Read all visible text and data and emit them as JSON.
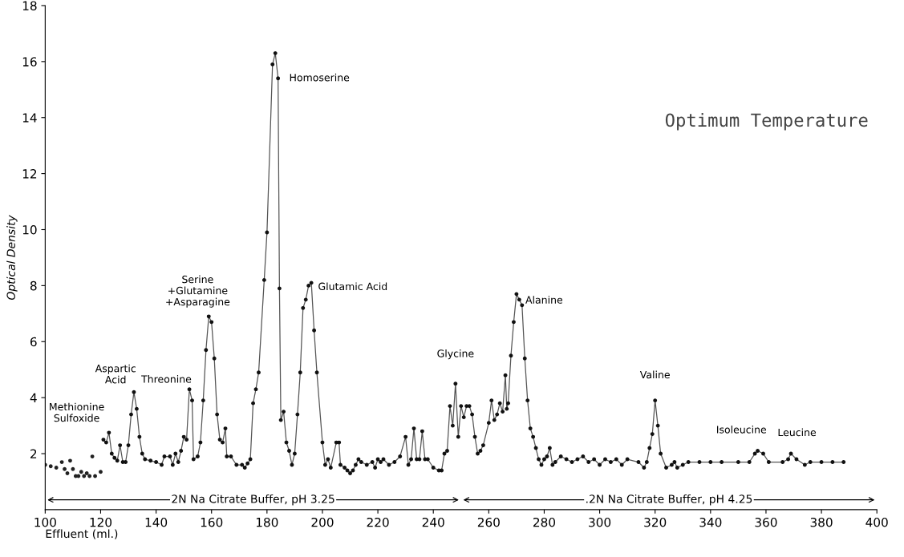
{
  "chart_data": {
    "type": "line",
    "title": "Optimum Temperature",
    "xlabel": "Effluent (ml.)",
    "ylabel": "Optical Density",
    "xlim": [
      100,
      400
    ],
    "xticks": [
      100,
      120,
      140,
      160,
      180,
      200,
      220,
      240,
      260,
      280,
      300,
      320,
      340,
      360,
      380,
      400
    ],
    "ylim": [
      0,
      18
    ],
    "yticks": [
      2,
      4,
      6,
      8,
      10,
      12,
      14,
      16,
      18
    ],
    "grid": false,
    "marker": "circle",
    "line_style": "solid",
    "series": [
      {
        "type": "scatter",
        "color": "#222222",
        "x": [
          100,
          102,
          104,
          106,
          107,
          108,
          109,
          110,
          111,
          112,
          113,
          114,
          115,
          116,
          117,
          118,
          120
        ],
        "values": [
          1.6,
          1.55,
          1.5,
          1.7,
          1.45,
          1.3,
          1.75,
          1.45,
          1.2,
          1.2,
          1.35,
          1.2,
          1.3,
          1.2,
          1.9,
          1.2,
          1.35
        ]
      },
      {
        "color": "#555555",
        "x": [
          121,
          122,
          123,
          124,
          125,
          126,
          127,
          128,
          129,
          130,
          131,
          132,
          133,
          134,
          135,
          136,
          138,
          140,
          142,
          143,
          145,
          146,
          147,
          148,
          149,
          150,
          151,
          152,
          153,
          153.5,
          155,
          156,
          157,
          158,
          159,
          160,
          161,
          162,
          163,
          164,
          165,
          165.5,
          167,
          169,
          171,
          172,
          173,
          174,
          175,
          176,
          177,
          179,
          180,
          182,
          183,
          184,
          184.5,
          185,
          186,
          187,
          188,
          189,
          190,
          191,
          192,
          193,
          194,
          195,
          196,
          197,
          198,
          200,
          201,
          202,
          203,
          205,
          206,
          206.5,
          208,
          209,
          210,
          211,
          212,
          213,
          214,
          216,
          218,
          219,
          220,
          221,
          222,
          224,
          226,
          228,
          230,
          231,
          232,
          233,
          234,
          235,
          236,
          237,
          238,
          240,
          242,
          243,
          244,
          245,
          246,
          247,
          248,
          249,
          250,
          251,
          252,
          253,
          254,
          255,
          256,
          257,
          258,
          260,
          261,
          262,
          263,
          264,
          265,
          266,
          266.5,
          267,
          268,
          269,
          270,
          271,
          272,
          273,
          274,
          275,
          276,
          277,
          278,
          279,
          280,
          281,
          282,
          283,
          284,
          286,
          288,
          290,
          292,
          294,
          296,
          298,
          300,
          302,
          304,
          306,
          308,
          310,
          314,
          316,
          317,
          318,
          319,
          320,
          321,
          322,
          324,
          326,
          327,
          328,
          330,
          332,
          336,
          340,
          344,
          350,
          354,
          356,
          357,
          359,
          361,
          366,
          368,
          369,
          371,
          374,
          376,
          380,
          384,
          388
        ],
        "values": [
          2.5,
          2.4,
          2.75,
          2.0,
          1.85,
          1.75,
          2.3,
          1.7,
          1.7,
          2.3,
          3.4,
          4.2,
          3.6,
          2.6,
          2.0,
          1.8,
          1.75,
          1.7,
          1.6,
          1.9,
          1.9,
          1.6,
          2.0,
          1.7,
          2.1,
          2.6,
          2.5,
          4.3,
          3.9,
          1.8,
          1.9,
          2.4,
          3.9,
          5.7,
          6.9,
          6.7,
          5.4,
          3.4,
          2.5,
          2.4,
          2.9,
          1.9,
          1.9,
          1.6,
          1.6,
          1.5,
          1.65,
          1.8,
          3.8,
          4.3,
          4.9,
          8.2,
          9.9,
          15.9,
          16.3,
          15.4,
          7.9,
          3.2,
          3.5,
          2.4,
          2.1,
          1.6,
          2.0,
          3.4,
          4.9,
          7.2,
          7.5,
          8.0,
          8.1,
          6.4,
          4.9,
          2.4,
          1.6,
          1.8,
          1.5,
          2.4,
          2.4,
          1.6,
          1.5,
          1.4,
          1.3,
          1.4,
          1.6,
          1.8,
          1.7,
          1.6,
          1.7,
          1.5,
          1.8,
          1.7,
          1.8,
          1.6,
          1.7,
          1.9,
          2.6,
          1.6,
          1.8,
          2.9,
          1.8,
          1.8,
          2.8,
          1.8,
          1.8,
          1.5,
          1.4,
          1.4,
          2.0,
          2.1,
          3.7,
          3.0,
          4.5,
          2.6,
          3.7,
          3.3,
          3.7,
          3.7,
          3.4,
          2.6,
          2.0,
          2.1,
          2.3,
          3.1,
          3.9,
          3.2,
          3.4,
          3.8,
          3.5,
          4.8,
          3.6,
          3.8,
          5.5,
          6.7,
          7.7,
          7.5,
          7.3,
          5.4,
          3.9,
          2.9,
          2.6,
          2.2,
          1.8,
          1.6,
          1.8,
          1.9,
          2.2,
          1.6,
          1.7,
          1.9,
          1.8,
          1.7,
          1.8,
          1.9,
          1.7,
          1.8,
          1.6,
          1.8,
          1.7,
          1.8,
          1.6,
          1.8,
          1.7,
          1.5,
          1.7,
          2.2,
          2.7,
          3.9,
          3.0,
          2.0,
          1.5,
          1.6,
          1.7,
          1.5,
          1.6,
          1.7,
          1.7,
          1.7,
          1.7,
          1.7,
          1.7,
          2.0,
          2.1,
          2.0,
          1.7,
          1.7,
          1.8,
          2.0,
          1.8,
          1.6,
          1.7,
          1.7,
          1.7,
          1.7
        ]
      }
    ],
    "annotations": [
      {
        "text": "Methionine\nSulfoxide",
        "x": 123,
        "y": 2.75
      },
      {
        "text": "Aspartic\nAcid",
        "x": 132,
        "y": 4.2
      },
      {
        "text": "Threonine",
        "x": 152,
        "y": 4.3
      },
      {
        "text": "Serine\n+Glutamine\n+Asparagine",
        "x": 159,
        "y": 6.9
      },
      {
        "text": "Homoserine",
        "x": 184,
        "y": 15.4
      },
      {
        "text": "Glutamic Acid",
        "x": 196,
        "y": 8.1
      },
      {
        "text": "Glycine",
        "x": 248,
        "y": 4.5
      },
      {
        "text": "Alanine",
        "x": 270,
        "y": 7.7
      },
      {
        "text": "Valine",
        "x": 320,
        "y": 3.9
      },
      {
        "text": "Isoleucine",
        "x": 357,
        "y": 2.1
      },
      {
        "text": "Leucine",
        "x": 369,
        "y": 2.0
      },
      "2N Na Citrate Buffer, pH 3.25",
      ".2N Na Citrate Buffer, pH 4.25"
    ]
  }
}
